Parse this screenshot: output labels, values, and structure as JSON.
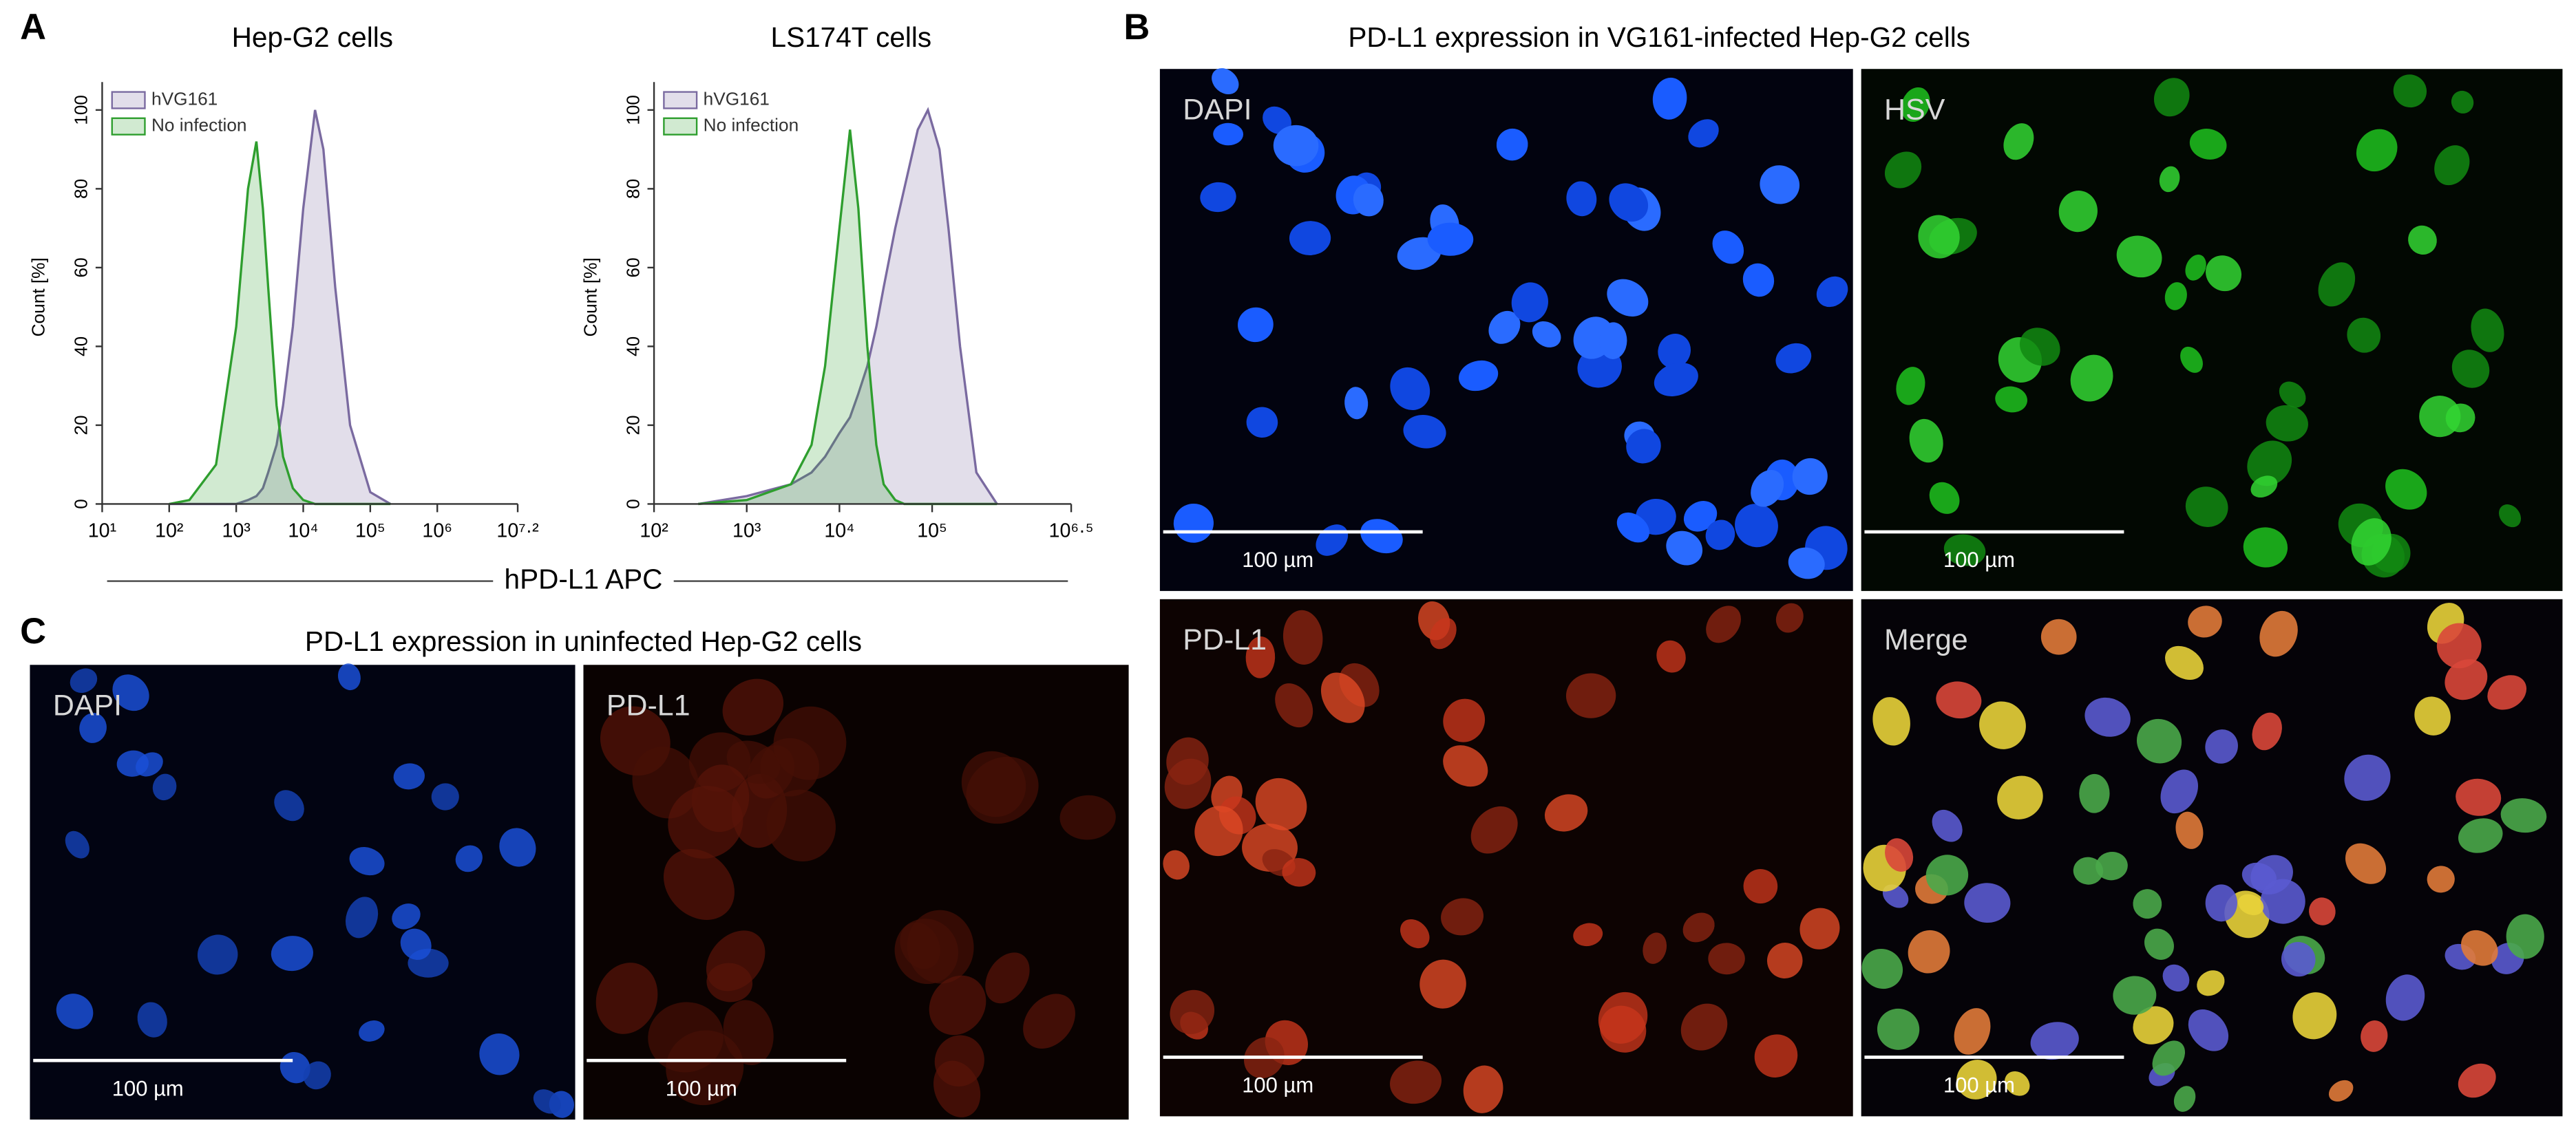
{
  "panel_labels": [
    "A",
    "B",
    "C"
  ],
  "chart_data": [
    {
      "type": "area",
      "title": "Hep-G2 cells",
      "y_label": "Count [%]",
      "x_label": "hPD-L1 APC",
      "log_x": true,
      "legend": "top-left",
      "x": [
        100,
        200,
        500,
        1000,
        1500,
        2000,
        2500,
        3000,
        4000,
        5000,
        7000,
        10000,
        15000,
        20000,
        30000,
        50000,
        100000,
        200000
      ],
      "series": [
        {
          "name": "hVG161",
          "color": "#7a6aa0",
          "values": [
            0,
            0,
            0,
            0,
            1,
            2,
            4,
            8,
            15,
            25,
            45,
            75,
            100,
            90,
            55,
            20,
            3,
            0
          ]
        },
        {
          "name": "No infection",
          "color": "#2e9e2e",
          "values": [
            0,
            1,
            10,
            45,
            80,
            92,
            75,
            55,
            25,
            12,
            4,
            1,
            0,
            0,
            0,
            0,
            0,
            0
          ]
        }
      ],
      "xlim": [
        10,
        15848932
      ],
      "xticks": [
        {
          "value": 10,
          "label": "10¹"
        },
        {
          "value": 100,
          "label": "10²"
        },
        {
          "value": 1000,
          "label": "10³"
        },
        {
          "value": 10000,
          "label": "10⁴"
        },
        {
          "value": 100000,
          "label": "10⁵"
        },
        {
          "value": 1000000,
          "label": "10⁶"
        },
        {
          "value": 15848932,
          "label": "10⁷·²"
        }
      ],
      "ylim": [
        0,
        105
      ],
      "yticks": [
        0,
        20,
        40,
        60,
        80,
        100
      ]
    },
    {
      "type": "area",
      "title": "LS174T cells",
      "y_label": "Count [%]",
      "log_x": true,
      "legend": "top-left",
      "x": [
        300,
        1000,
        3000,
        5000,
        7000,
        10000,
        13000,
        16000,
        20000,
        25000,
        30000,
        40000,
        50000,
        70000,
        90000,
        120000,
        150000,
        200000,
        300000,
        500000
      ],
      "series": [
        {
          "name": "hVG161",
          "color": "#7a6aa0",
          "values": [
            0,
            2,
            5,
            8,
            12,
            18,
            22,
            28,
            35,
            45,
            55,
            70,
            80,
            95,
            100,
            90,
            70,
            40,
            8,
            0
          ]
        },
        {
          "name": "No infection",
          "color": "#2e9e2e",
          "values": [
            0,
            1,
            5,
            15,
            35,
            70,
            95,
            75,
            40,
            15,
            5,
            1,
            0,
            0,
            0,
            0,
            0,
            0,
            0,
            0
          ]
        }
      ],
      "xlim": [
        100,
        3162278
      ],
      "xticks": [
        {
          "value": 100,
          "label": "10²"
        },
        {
          "value": 1000,
          "label": "10³"
        },
        {
          "value": 10000,
          "label": "10⁴"
        },
        {
          "value": 100000,
          "label": "10⁵"
        },
        {
          "value": 3162278,
          "label": "10⁶·⁵"
        }
      ],
      "ylim": [
        0,
        105
      ],
      "yticks": [
        0,
        20,
        40,
        60,
        80,
        100
      ]
    }
  ],
  "panel_b": {
    "title": "PD-L1 expression in VG161-infected Hep-G2 cells",
    "images": [
      {
        "label": "DAPI",
        "scale_bar": "100 µm"
      },
      {
        "label": "HSV",
        "scale_bar": "100 µm"
      },
      {
        "label": "PD-L1",
        "scale_bar": "100 µm"
      },
      {
        "label": "Merge",
        "scale_bar": "100 µm"
      }
    ]
  },
  "panel_c": {
    "title": "PD-L1 expression in uninfected Hep-G2 cells",
    "images": [
      {
        "label": "DAPI",
        "scale_bar": "100 µm"
      },
      {
        "label": "PD-L1",
        "scale_bar": "100 µm"
      }
    ]
  }
}
